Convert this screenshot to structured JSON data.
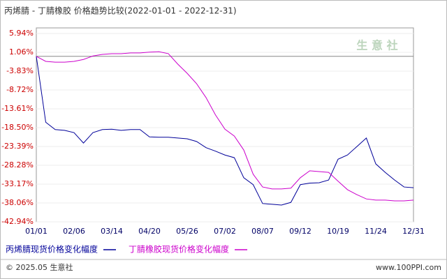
{
  "chart_data": {
    "type": "line",
    "title": "丙烯腈 - 丁腈橡胶 价格趋势比较(2022-01-01 - 2022-12-31)",
    "categories": [
      "01/01",
      null,
      null,
      null,
      "02/06",
      null,
      null,
      null,
      "03/14",
      null,
      null,
      null,
      "04/20",
      null,
      null,
      null,
      "05/26",
      null,
      null,
      null,
      "07/02",
      null,
      null,
      null,
      "08/07",
      null,
      null,
      null,
      "09/12",
      null,
      null,
      null,
      "10/19",
      null,
      null,
      null,
      "11/24",
      null,
      null,
      null,
      "12/31"
    ],
    "series": [
      {
        "name": "丙烯腈现货价格变化幅度",
        "color": "#000099",
        "values": [
          0,
          -17.1,
          -19.0,
          -19.2,
          -19.8,
          -22.5,
          -19.8,
          -19.0,
          -18.9,
          -19.2,
          -19.0,
          -19.0,
          -20.9,
          -21.0,
          -21.0,
          -21.2,
          -21.4,
          -22.1,
          -23.7,
          -24.6,
          -25.6,
          -26.3,
          -31.5,
          -33.3,
          -38.2,
          -38.4,
          -38.6,
          -37.9,
          -33.3,
          -32.9,
          -32.8,
          -32.1,
          -26.7,
          -25.6,
          -23.4,
          -21.2,
          -27.9,
          -30.1,
          -32.1,
          -33.9,
          -34.1
        ]
      },
      {
        "name": "丁腈橡胶现货价格变化幅度",
        "color": "#cc00cc",
        "values": [
          0,
          -1.3,
          -1.5,
          -1.5,
          -1.3,
          -0.8,
          0.1,
          0.5,
          0.7,
          0.7,
          0.9,
          0.9,
          1.1,
          1.2,
          0.7,
          -2.0,
          -4.4,
          -7.1,
          -10.7,
          -15.2,
          -18.9,
          -20.7,
          -24.3,
          -30.6,
          -33.9,
          -34.4,
          -34.4,
          -34.2,
          -31.5,
          -29.7,
          -29.9,
          -30.1,
          -32.4,
          -34.6,
          -35.9,
          -37.0,
          -37.3,
          -37.3,
          -37.5,
          -37.5,
          -37.3
        ]
      }
    ],
    "ylim": [
      5.94,
      -42.94
    ],
    "yticks": [
      {
        "value": 5.94,
        "label": "5.94%"
      },
      {
        "value": 1.06,
        "label": "1.06%"
      },
      {
        "value": -3.83,
        "label": "-3.83%"
      },
      {
        "value": -8.72,
        "label": "-8.72%"
      },
      {
        "value": -13.61,
        "label": "-13.61%"
      },
      {
        "value": -18.5,
        "label": "-18.50%"
      },
      {
        "value": -23.39,
        "label": "-23.39%"
      },
      {
        "value": -28.28,
        "label": "-28.28%"
      },
      {
        "value": -33.17,
        "label": "-33.17%"
      },
      {
        "value": -38.06,
        "label": "-38.06%"
      },
      {
        "value": -42.94,
        "label": "-42.94%"
      }
    ],
    "grid": true
  },
  "watermark": "生 意 社",
  "footer": {
    "copyright": "© 2025.05 生意社",
    "site": "www.100PPI.com"
  }
}
